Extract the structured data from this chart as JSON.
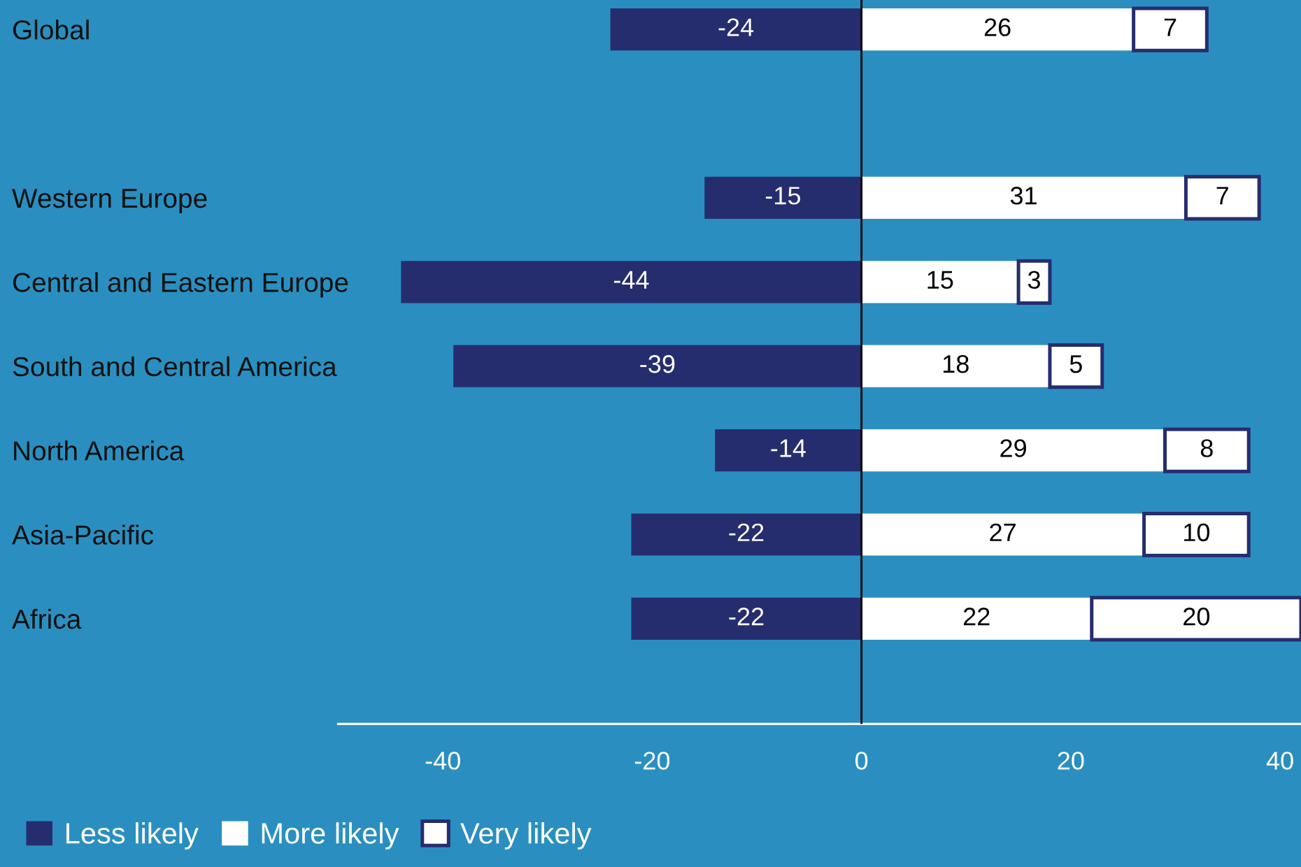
{
  "chart_data": {
    "type": "bar",
    "orientation": "horizontal",
    "stacked": true,
    "categories": [
      "Global",
      null,
      "Western Europe",
      "Central and Eastern Europe",
      "South and Central America",
      "North America",
      "Asia-Pacific",
      "Africa"
    ],
    "series": [
      {
        "name": "Less likely",
        "color": "#262d6e",
        "values": [
          -24,
          null,
          -15,
          -44,
          -39,
          -14,
          -22,
          -22
        ]
      },
      {
        "name": "More likely",
        "color": "#ffffff",
        "values": [
          26,
          null,
          31,
          15,
          18,
          29,
          27,
          22
        ]
      },
      {
        "name": "Very likely",
        "color": "#ffffff",
        "values": [
          7,
          null,
          7,
          3,
          5,
          8,
          10,
          20
        ]
      }
    ],
    "xlim": [
      -50,
      42
    ],
    "xticks": [
      -40,
      -20,
      0,
      20,
      40
    ],
    "ref_lines": [
      {
        "axis": "x",
        "value": 0,
        "label": null,
        "color": "#000000"
      }
    ],
    "data_labels": true,
    "grid": false,
    "legend": "bottom left"
  }
}
